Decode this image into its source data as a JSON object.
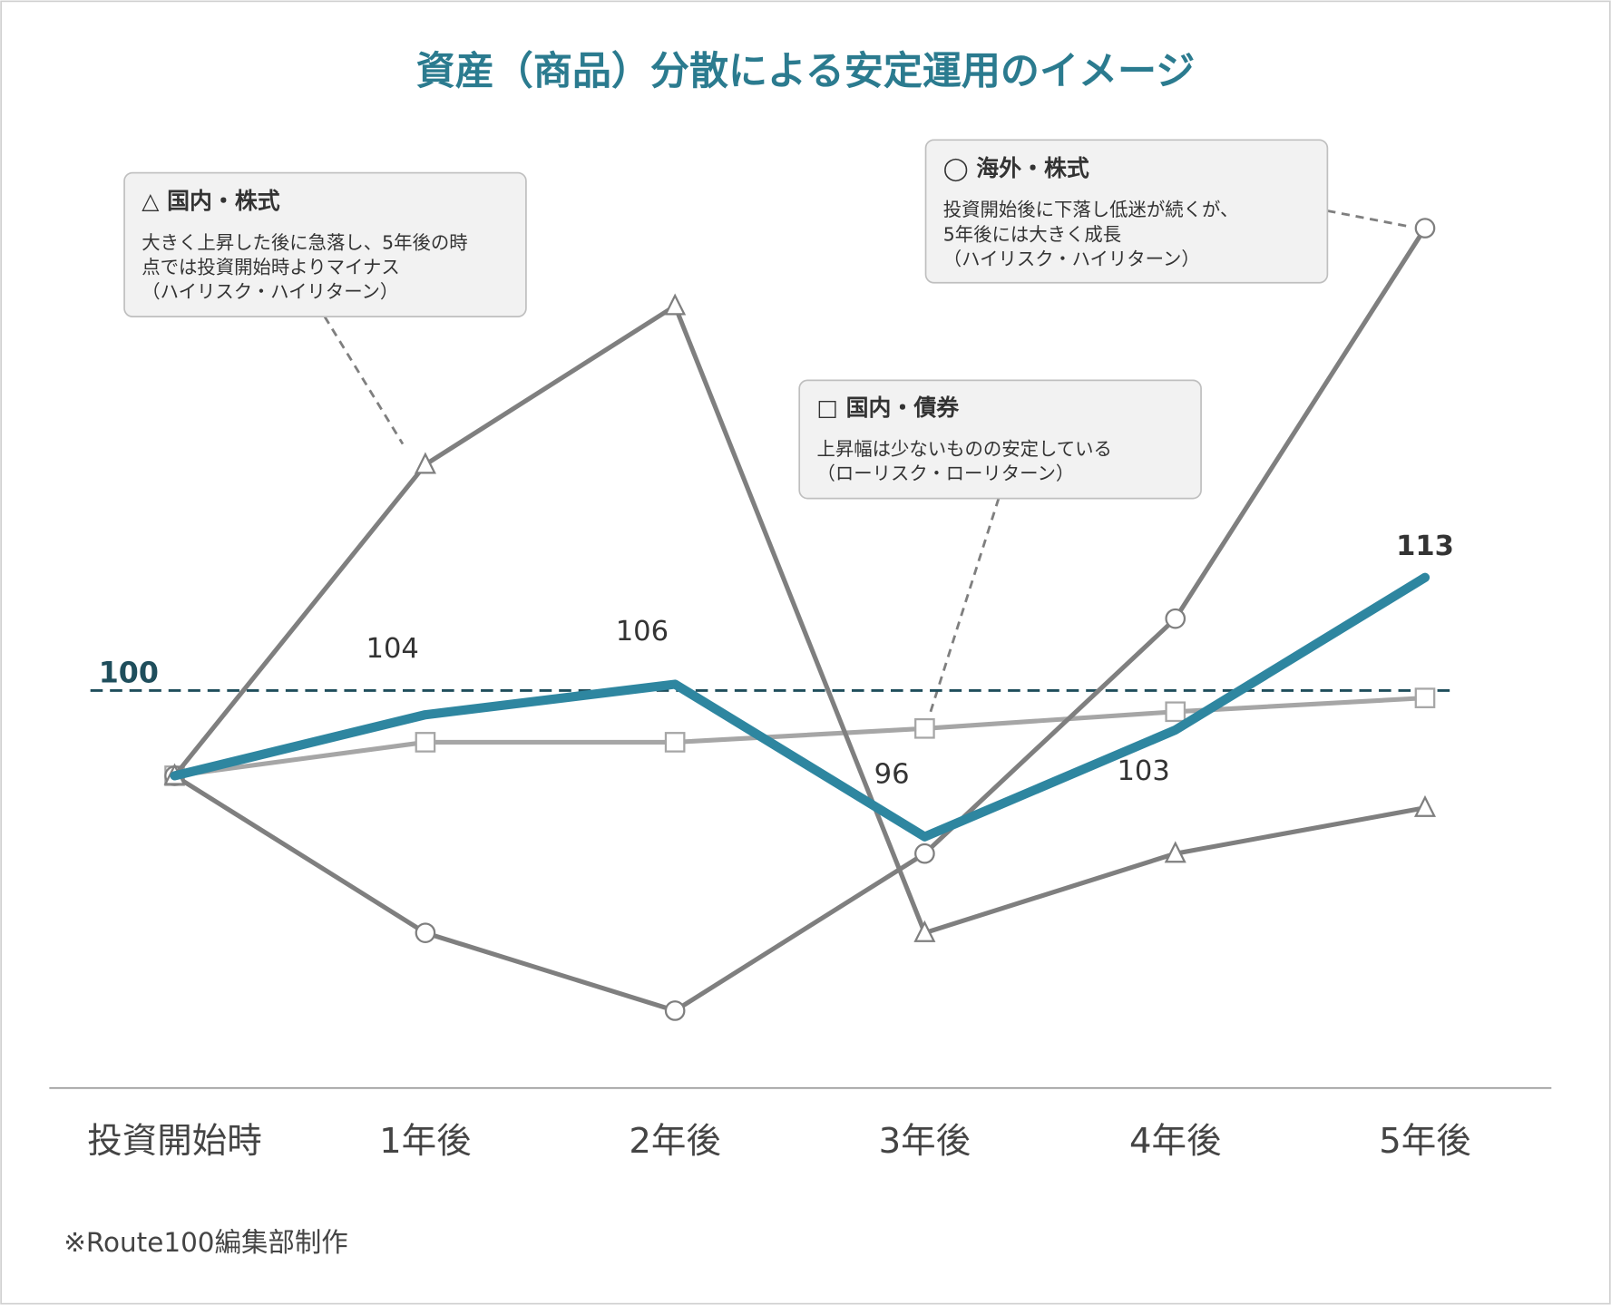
{
  "chart_data": {
    "type": "line",
    "title": "資産（商品）分散による安定運用のイメージ",
    "categories": [
      "投資開始時",
      "1年後",
      "2年後",
      "3年後",
      "4年後",
      "5年後"
    ],
    "grid": false,
    "legend": "callouts",
    "series": [
      {
        "key": "domestic_stock",
        "marker": "triangle",
        "color": "#7f7f7f",
        "values": [
          100,
          120.4,
          130.8,
          89.7,
          94.9,
          97.9
        ]
      },
      {
        "key": "foreign_stock",
        "marker": "circle",
        "color": "#7f7f7f",
        "values": [
          100,
          89.7,
          84.6,
          94.9,
          110.3,
          135.9
        ]
      },
      {
        "key": "domestic_bond",
        "marker": "square",
        "color": "#a6a6a6",
        "values": [
          100,
          102.2,
          102.2,
          103.1,
          104.2,
          105.1
        ]
      },
      {
        "key": "diversified",
        "marker": "none",
        "color": "#2e86a0",
        "values": [
          100,
          104,
          106,
          96,
          103,
          113
        ],
        "data_labels": [
          "",
          "104",
          "106",
          "96",
          "103",
          "113"
        ]
      }
    ],
    "reference_line": {
      "label": "100",
      "color": "#1f4e5c",
      "style": "dashed"
    },
    "callouts": [
      {
        "series": "domestic_stock",
        "heading": "△ 国内・株式",
        "lines": [
          "大きく上昇した後に急落し、5年後の時",
          "点では投資開始時よりマイナス",
          "（ハイリスク・ハイリターン）"
        ]
      },
      {
        "series": "foreign_stock",
        "heading": "◯ 海外・株式",
        "lines": [
          "投資開始後に下落し低迷が続くが、",
          "5年後には大きく成長",
          "（ハイリスク・ハイリターン）"
        ]
      },
      {
        "series": "domestic_bond",
        "heading": "□ 国内・債券",
        "lines": [
          "上昇幅は少ないものの安定している",
          "（ローリスク・ローリターン）"
        ]
      }
    ]
  },
  "footer": {
    "note": "※Route100編集部制作"
  }
}
